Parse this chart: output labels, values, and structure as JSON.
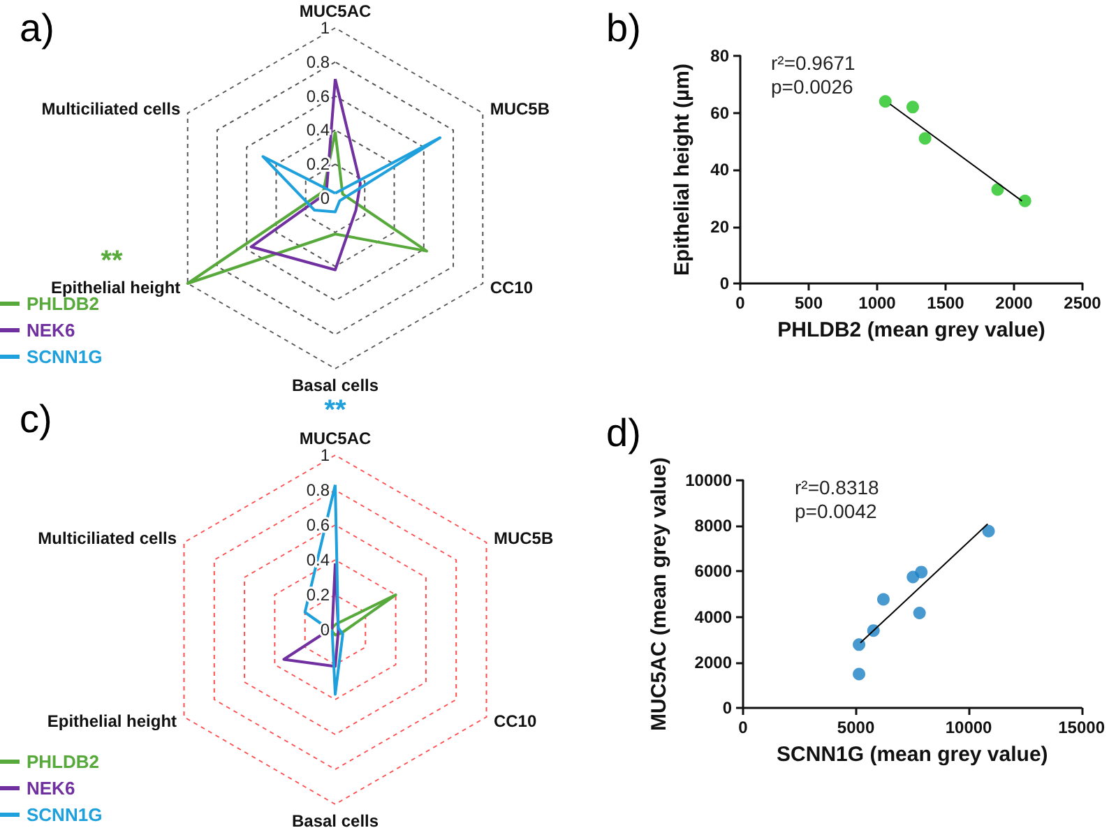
{
  "chart_data": [
    {
      "type": "radar",
      "title": "a)",
      "categories": [
        "MUC5AC",
        "MUC5B",
        "CC10",
        "Basal cells",
        "Epithelial height",
        "Multiciliated cells"
      ],
      "ylim": [
        0,
        1
      ],
      "yticks": [
        0,
        0.2,
        0.4,
        0.6,
        0.8,
        1
      ],
      "grid": true,
      "legend": "bottom left",
      "line_style": "solid",
      "marker": "none",
      "series": [
        {
          "name": "PHLDB2",
          "color": "#56a93a",
          "values": [
            0.39,
            0.05,
            0.62,
            0.21,
            1.0,
            0.08
          ]
        },
        {
          "name": "NEK6",
          "color": "#7030a0",
          "values": [
            0.7,
            0.17,
            0.14,
            0.42,
            0.57,
            0.06
          ]
        },
        {
          "name": "SCNN1G",
          "color": "#1ea0dc",
          "values": [
            0.03,
            0.71,
            0.03,
            0.08,
            0.14,
            0.49
          ]
        }
      ],
      "annotations": [
        {
          "text": "**",
          "x": "Epithelial height"
        }
      ]
    },
    {
      "type": "scatter",
      "title": "b)",
      "xlabel": "PHLDB2 (mean grey value)",
      "ylabel": "Epithelial height (µm)",
      "xlim": [
        0,
        2500
      ],
      "xticks": [
        0,
        500,
        1000,
        1500,
        2000,
        2500
      ],
      "ylim": [
        0,
        80
      ],
      "yticks": [
        0,
        20,
        40,
        60,
        80
      ],
      "grid": false,
      "marker": "circle",
      "series": [
        {
          "type": "scatter",
          "color": "#22c322",
          "x": [
            1060,
            1260,
            1350,
            1880,
            2080
          ],
          "values": [
            64,
            62,
            51,
            33,
            29
          ]
        },
        {
          "type": "line",
          "color": "#000000",
          "marker": "none",
          "x": [
            1095,
            2058
          ],
          "values": [
            63,
            29
          ]
        }
      ],
      "annotations": [
        "r²=0.9671",
        "p=0.0026"
      ]
    },
    {
      "type": "radar",
      "title": "c)",
      "categories": [
        "MUC5AC",
        "MUC5B",
        "CC10",
        "Basal cells",
        "Epithelial height",
        "Multiciliated cells"
      ],
      "ylim": [
        0,
        1
      ],
      "yticks": [
        0,
        0.2,
        0.4,
        0.6,
        0.8,
        1
      ],
      "grid": true,
      "legend": "bottom left",
      "line_style": "solid",
      "marker": "none",
      "series": [
        {
          "name": "PHLDB2",
          "color": "#56a93a",
          "values": [
            0.03,
            0.4,
            0.04,
            0.03,
            0.02,
            0.02
          ]
        },
        {
          "name": "NEK6",
          "color": "#7030a0",
          "values": [
            0.38,
            0.02,
            0.02,
            0.21,
            0.34,
            0.02
          ]
        },
        {
          "name": "SCNN1G",
          "color": "#1ea0dc",
          "values": [
            0.83,
            0.02,
            0.05,
            0.37,
            0.02,
            0.2
          ]
        }
      ],
      "annotations": [
        {
          "text": "**",
          "x": "MUC5AC"
        }
      ]
    },
    {
      "type": "scatter",
      "title": "d)",
      "xlabel": "SCNN1G (mean grey value)",
      "ylabel": "MUC5AC (mean grey value)",
      "xlim": [
        0,
        15000
      ],
      "xticks": [
        0,
        5000,
        10000,
        15000
      ],
      "ylim": [
        0,
        10000
      ],
      "yticks": [
        0,
        2000,
        4000,
        6000,
        8000,
        10000
      ],
      "grid": false,
      "marker": "circle",
      "series": [
        {
          "type": "scatter",
          "color": "#1a7fc4",
          "x": [
            5140,
            5140,
            5780,
            6220,
            7530,
            7900,
            7820,
            10880
          ],
          "values": [
            2780,
            1490,
            3400,
            4770,
            5750,
            5970,
            4170,
            7770
          ]
        },
        {
          "type": "line",
          "color": "#000000",
          "marker": "none",
          "x": [
            5200,
            10840
          ],
          "values": [
            2860,
            8080
          ]
        }
      ],
      "annotations": [
        "r²=0.8318",
        "p=0.0042"
      ]
    }
  ]
}
